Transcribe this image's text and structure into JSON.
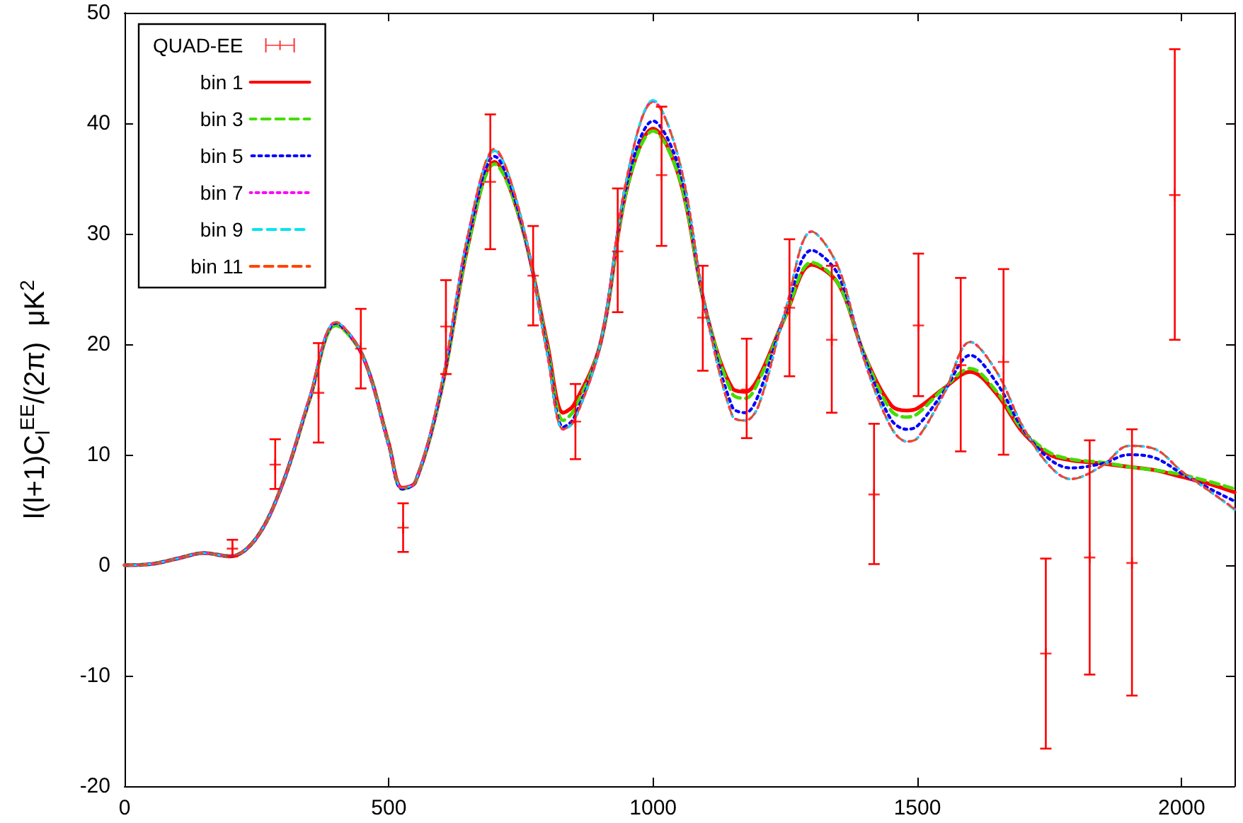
{
  "chart_data": {
    "type": "line",
    "ylabel": "l(l+1)C$_{l}$$^{EE}$/(2π)  μK$^{2}$",
    "x": [
      0,
      50,
      100,
      150,
      200,
      250,
      300,
      350,
      400,
      450,
      500,
      525,
      550,
      600,
      650,
      700,
      750,
      800,
      830,
      850,
      900,
      950,
      1000,
      1050,
      1100,
      1150,
      1175,
      1200,
      1250,
      1300,
      1350,
      1400,
      1450,
      1480,
      1500,
      1550,
      1600,
      1650,
      1700,
      1750,
      1790,
      1850,
      1900,
      1950,
      2000,
      2050,
      2100
    ],
    "xlim": [
      0,
      2100
    ],
    "xticks": [
      0,
      500,
      1000,
      1500,
      2000
    ],
    "ylim": [
      -20,
      50
    ],
    "yticks": [
      -20,
      -10,
      0,
      10,
      20,
      30,
      40,
      50
    ],
    "grid": false,
    "legend": "top left",
    "marker": "none",
    "series": [
      {
        "name": "QUAD-EE",
        "type": "scatter",
        "marker": "cross",
        "color": "#ff0000",
        "x": [
          204,
          285,
          367,
          447,
          527,
          608,
          692,
          773,
          853,
          933,
          1016,
          1094,
          1177,
          1258,
          1338,
          1418,
          1502,
          1582,
          1663,
          1743,
          1826,
          1906,
          1987
        ],
        "values": [
          1.5,
          9.1,
          15.6,
          19.6,
          3.4,
          21.6,
          34.7,
          26.2,
          13.0,
          28.4,
          35.3,
          22.4,
          15.9,
          23.3,
          20.4,
          6.4,
          21.7,
          18.1,
          18.4,
          -8.0,
          0.7,
          0.2,
          33.5
        ],
        "errors": [
          [
            0.8,
            2.3
          ],
          [
            6.9,
            11.4
          ],
          [
            11.1,
            20.1
          ],
          [
            16.0,
            23.2
          ],
          [
            1.2,
            5.6
          ],
          [
            17.3,
            25.8
          ],
          [
            28.6,
            40.8
          ],
          [
            21.7,
            30.7
          ],
          [
            9.6,
            16.4
          ],
          [
            22.9,
            34.1
          ],
          [
            28.9,
            41.5
          ],
          [
            17.6,
            27.1
          ],
          [
            11.5,
            20.5
          ],
          [
            17.1,
            29.5
          ],
          [
            13.8,
            27.1
          ],
          [
            0.1,
            12.8
          ],
          [
            15.3,
            28.2
          ],
          [
            10.3,
            26.0
          ],
          [
            10.0,
            26.8
          ],
          [
            -16.6,
            0.6
          ],
          [
            -9.9,
            11.3
          ],
          [
            -11.8,
            12.3
          ],
          [
            20.4,
            46.7
          ]
        ]
      },
      {
        "name": "bin 1",
        "color": "#ff0000",
        "line_style": "solid",
        "values": [
          0,
          0.1,
          0.6,
          1.1,
          0.8,
          2.5,
          7.5,
          15,
          21.8,
          19,
          11,
          7,
          7.5,
          16,
          29,
          36.5,
          31,
          20,
          13.8,
          14.5,
          20,
          34,
          39.5,
          35,
          23,
          16,
          15.7,
          17,
          22.5,
          27.2,
          25.5,
          19,
          14.5,
          14,
          14.2,
          16,
          17.5,
          15.5,
          12,
          10,
          9.5,
          9.2,
          8.9,
          8.6,
          8,
          7.4,
          6.6
        ]
      },
      {
        "name": "bin 3",
        "color": "#44dd00",
        "line_style": "dashed",
        "values": [
          0,
          0.1,
          0.6,
          1.1,
          0.8,
          2.5,
          7.5,
          15,
          21.7,
          19,
          10.9,
          6.9,
          7.5,
          16,
          29,
          36.3,
          31,
          19.7,
          13.1,
          14,
          20,
          34,
          39.3,
          35,
          23,
          15.5,
          15.1,
          16.7,
          22.5,
          27.4,
          25.5,
          19,
          14,
          13.4,
          13.7,
          16,
          17.8,
          15.7,
          12.2,
          10.2,
          9.6,
          9.3,
          8.9,
          8.6,
          8.2,
          7.6,
          6.9
        ]
      },
      {
        "name": "bin 5",
        "color": "#0000ff",
        "line_style": "dotted",
        "values": [
          0,
          0.1,
          0.6,
          1.1,
          0.8,
          2.5,
          7.5,
          15.1,
          21.9,
          19,
          10.8,
          6.9,
          7.5,
          16.2,
          29.5,
          37,
          31.2,
          19.3,
          12.5,
          13.3,
          20,
          34.5,
          40.2,
          35.8,
          23,
          14.3,
          13.8,
          15.5,
          22.8,
          28.5,
          26.3,
          18.8,
          13.2,
          12.3,
          12.6,
          15.7,
          19,
          16.5,
          12.3,
          9.6,
          8.8,
          9.2,
          10,
          9.7,
          8.3,
          7,
          5.8
        ]
      },
      {
        "name": "bin 7",
        "color": "#ff00ff",
        "line_style": "dotted",
        "values": [
          0,
          0.1,
          0.6,
          1.1,
          0.8,
          2.5,
          7.5,
          15.2,
          22,
          19,
          10.8,
          7,
          7.5,
          16.5,
          30,
          37.5,
          31.5,
          19,
          12.3,
          13,
          20,
          35,
          42,
          36.5,
          23,
          13.5,
          13.1,
          14.5,
          23,
          30.2,
          27,
          18.5,
          12.5,
          11.2,
          11.5,
          15.5,
          20.2,
          17.5,
          12.5,
          9,
          7.8,
          9,
          10.8,
          10.5,
          8.5,
          6.8,
          5.1
        ]
      },
      {
        "name": "bin 9",
        "color": "#00e5ee",
        "line_style": "dashed",
        "values": [
          0,
          0.1,
          0.6,
          1.1,
          0.8,
          2.5,
          7.5,
          15.2,
          22,
          19,
          10.8,
          7,
          7.5,
          16.5,
          30,
          37.5,
          31.5,
          19,
          12.3,
          13,
          20,
          35,
          42.1,
          36.5,
          23,
          13.5,
          13.1,
          14.5,
          23,
          30.2,
          27,
          18.5,
          12.5,
          11.2,
          11.5,
          15.5,
          20.2,
          17.5,
          12.5,
          9,
          7.8,
          9,
          10.8,
          10.5,
          8.5,
          6.8,
          5.0
        ]
      },
      {
        "name": "bin 11",
        "color": "#ff4500",
        "line_style": "dashed",
        "values": [
          0,
          0.1,
          0.6,
          1.1,
          0.8,
          2.5,
          7.5,
          15.2,
          22,
          19,
          10.8,
          7,
          7.5,
          16.5,
          30,
          37.7,
          31.5,
          19,
          12.3,
          13,
          20,
          35,
          41.9,
          36.5,
          23,
          13.5,
          13.1,
          14.5,
          23,
          30.2,
          27,
          18.5,
          12.5,
          11.2,
          11.5,
          15.5,
          20.2,
          17.5,
          12.5,
          9,
          7.8,
          9,
          10.8,
          10.5,
          8.5,
          6.8,
          5.1
        ]
      }
    ]
  }
}
